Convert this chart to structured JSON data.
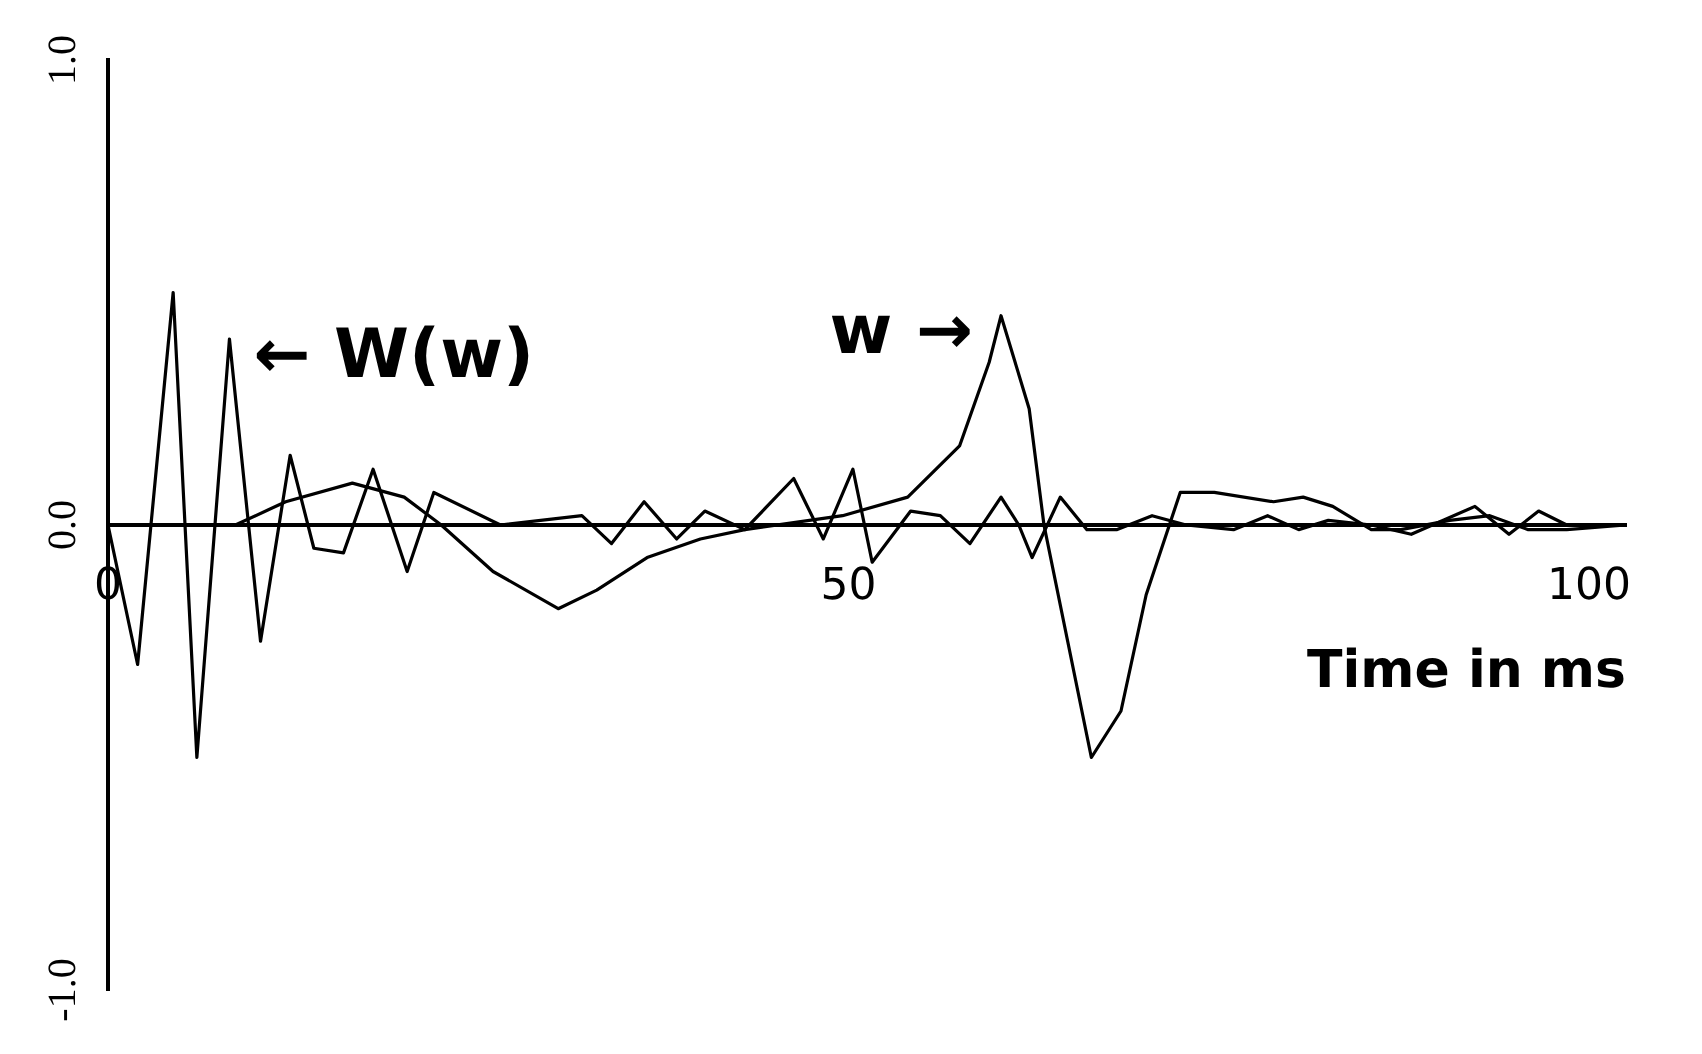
{
  "chart_data": {
    "type": "line",
    "xlabel": "Time in ms",
    "xlim": [
      0,
      102.5
    ],
    "xticks": [
      0,
      50,
      100
    ],
    "ylim": [
      -1,
      1
    ],
    "yticks": [
      {
        "value": -1,
        "label": "-1.0"
      },
      {
        "value": 0,
        "label": "0.0"
      },
      {
        "value": 1,
        "label": "1.0"
      }
    ],
    "grid": false,
    "marker": "none",
    "annotations": [
      {
        "text": "← W(w)",
        "x": 8.2,
        "y": 0.4
      },
      {
        "text": "w →",
        "x": 60.3,
        "y": 0.45
      }
    ],
    "series": [
      {
        "color": "#000000",
        "x": [
          0,
          2,
          4.4,
          6,
          8.2,
          10.3,
          12.3,
          13.9,
          15.9,
          17.9,
          20.2,
          22,
          26.5,
          32,
          34,
          36.2,
          38.4,
          40.3,
          43,
          46.3,
          48.3,
          50.3,
          51.6,
          54.2,
          56.2,
          58.2,
          60.3,
          61.5,
          62.4,
          64.3,
          66.1,
          68.1,
          70.5,
          72.8,
          76,
          78.3,
          80.4,
          82.4,
          85.3,
          88,
          92.3,
          94.6,
          96.6,
          98.5,
          102.5
        ],
        "values": [
          0,
          -0.3,
          0.5,
          -0.5,
          0.4,
          -0.25,
          0.15,
          -0.05,
          -0.06,
          0.12,
          -0.1,
          0.07,
          0,
          0.02,
          -0.04,
          0.05,
          -0.03,
          0.03,
          -0.01,
          0.1,
          -0.03,
          0.12,
          -0.08,
          0.03,
          0.02,
          -0.04,
          0.06,
          0,
          -0.07,
          0.06,
          -0.01,
          -0.01,
          0.02,
          0,
          -0.01,
          0.02,
          -0.01,
          0.01,
          0,
          -0.02,
          0.04,
          -0.02,
          0.03,
          0,
          0
        ]
      },
      {
        "color": "#000000",
        "x": [
          0,
          8.6,
          12,
          16.5,
          20,
          22.5,
          26,
          30.4,
          33,
          36.4,
          40,
          43,
          49.6,
          54,
          57.5,
          59.5,
          60.3,
          62.2,
          63.2,
          64.8,
          66.4,
          68.4,
          70.1,
          72.4,
          74.7,
          78.7,
          80.7,
          82.7,
          85.3,
          87.3,
          90.6,
          93.3,
          95.9,
          98.5,
          102.5
        ],
        "values": [
          0,
          0,
          0.05,
          0.09,
          0.06,
          0,
          -0.1,
          -0.18,
          -0.14,
          -0.07,
          -0.03,
          -0.01,
          0.02,
          0.06,
          0.17,
          0.35,
          0.45,
          0.25,
          0,
          -0.25,
          -0.5,
          -0.4,
          -0.15,
          0.07,
          0.07,
          0.05,
          0.06,
          0.04,
          -0.01,
          -0.01,
          0.01,
          0.02,
          -0.01,
          -0.01,
          0
        ]
      }
    ]
  }
}
